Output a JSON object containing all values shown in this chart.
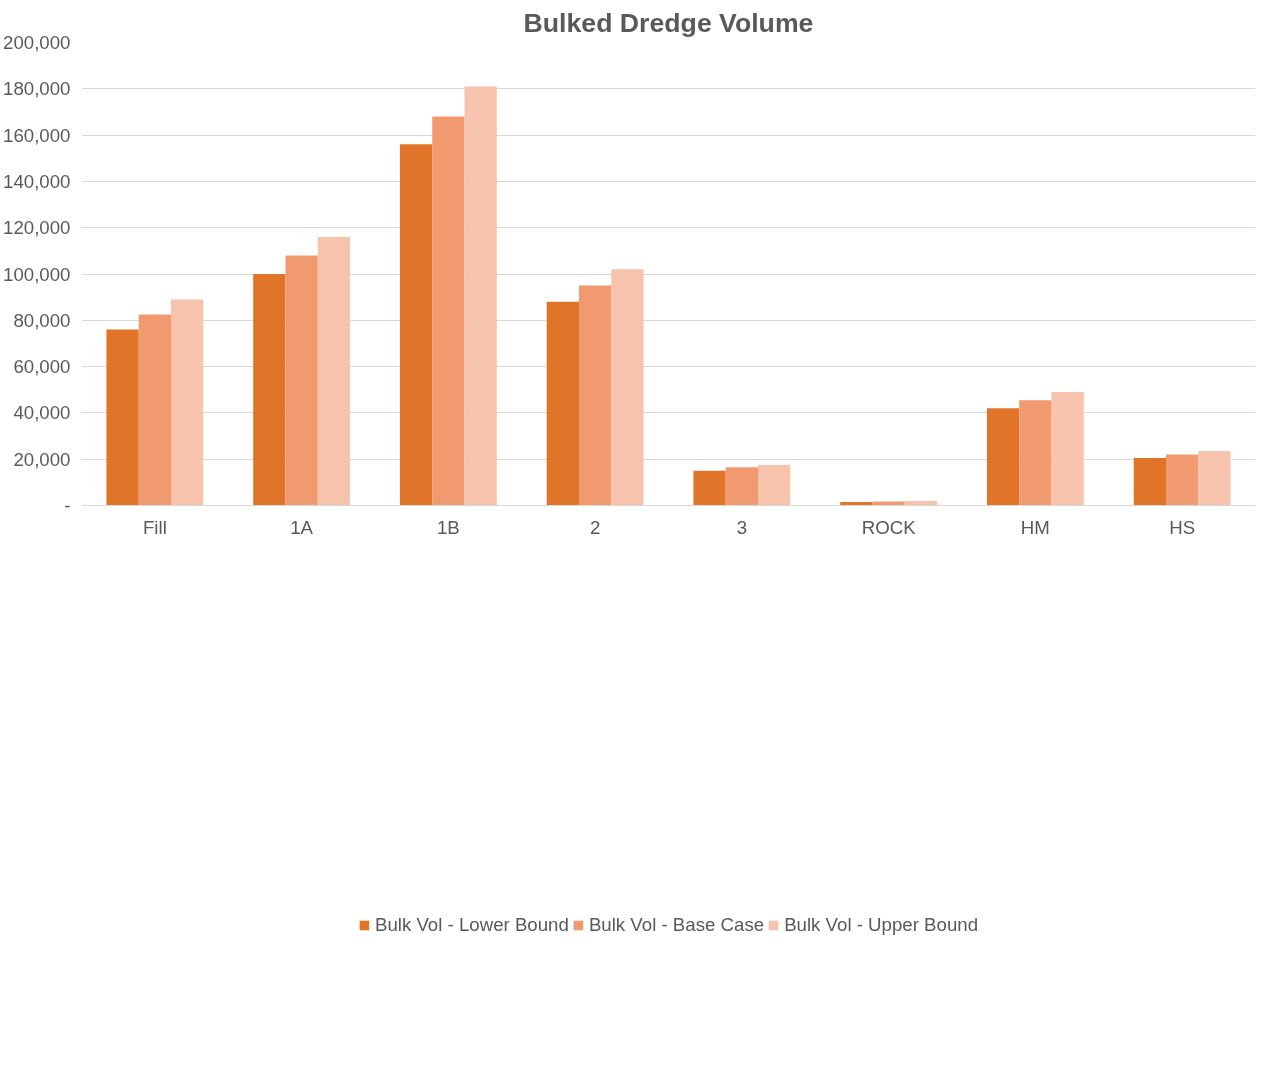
{
  "chart_data": {
    "type": "bar",
    "title": "Bulked Dredge Volume",
    "categories": [
      "Fill",
      "1A",
      "1B",
      "2",
      "3",
      "ROCK",
      "HM",
      "HS"
    ],
    "series": [
      {
        "name": "Bulk Vol - Lower Bound",
        "color": "#e07428",
        "values": [
          76000,
          100000,
          156000,
          88000,
          15000,
          1500,
          42000,
          20500
        ]
      },
      {
        "name": "Bulk Vol - Base Case",
        "color": "#f19a6f",
        "values": [
          82500,
          108000,
          168000,
          95000,
          16500,
          1700,
          45500,
          22000
        ]
      },
      {
        "name": "Bulk Vol - Upper Bound",
        "color": "#f7c3ad",
        "values": [
          89000,
          116000,
          181000,
          102000,
          17500,
          1900,
          49000,
          23500
        ]
      }
    ],
    "ylim": [
      0,
      200000
    ],
    "yticks": [
      {
        "value": 0,
        "label": "-"
      },
      {
        "value": 20000,
        "label": "20,000"
      },
      {
        "value": 40000,
        "label": "40,000"
      },
      {
        "value": 60000,
        "label": "60,000"
      },
      {
        "value": 80000,
        "label": "80,000"
      },
      {
        "value": 100000,
        "label": "100,000"
      },
      {
        "value": 120000,
        "label": "120,000"
      },
      {
        "value": 140000,
        "label": "140,000"
      },
      {
        "value": 160000,
        "label": "160,000"
      },
      {
        "value": 180000,
        "label": "180,000"
      },
      {
        "value": 200000,
        "label": "200,000"
      }
    ],
    "grid": "y",
    "legend": "bottom"
  }
}
